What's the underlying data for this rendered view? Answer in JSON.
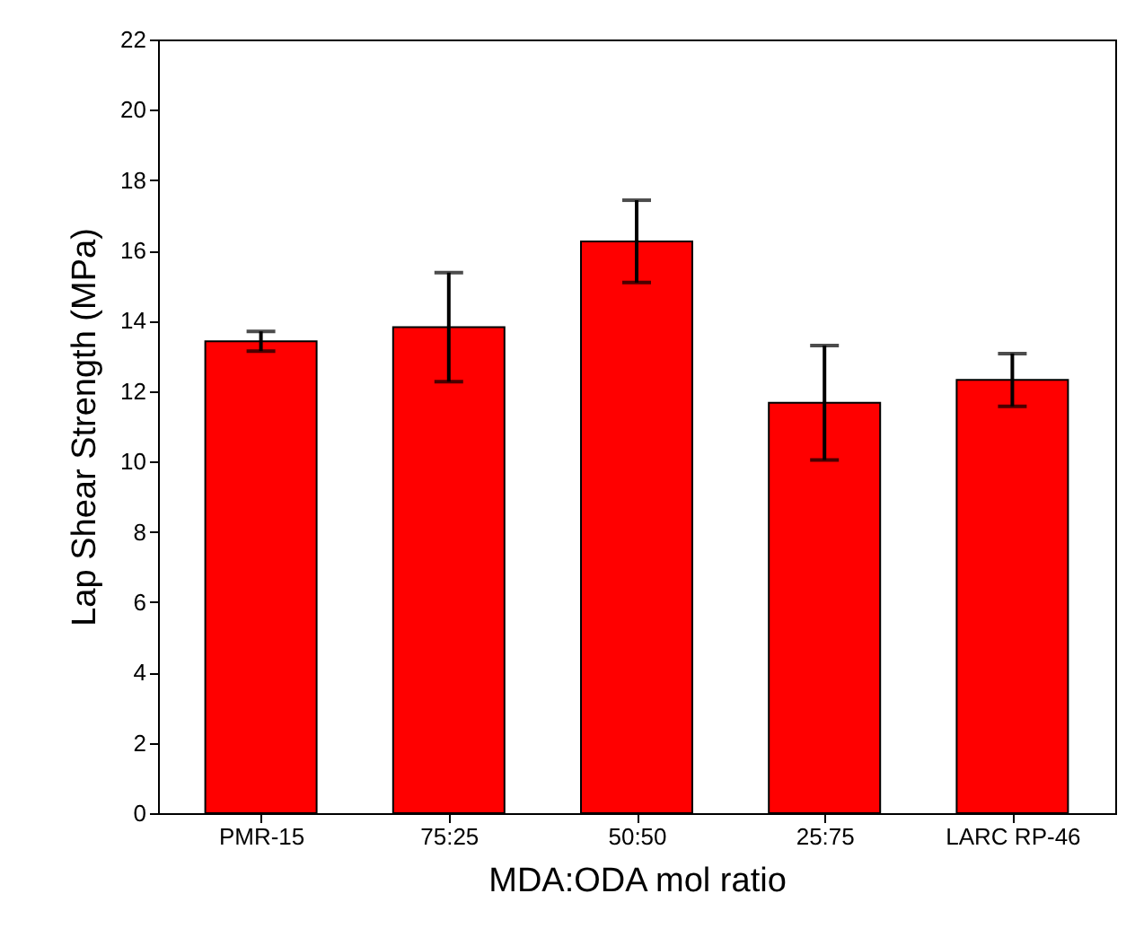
{
  "chart_data": {
    "type": "bar",
    "xlabel": "MDA:ODA mol ratio",
    "ylabel": "Lap Shear Strength (MPa)",
    "categories": [
      "PMR-15",
      "75:25",
      "50:50",
      "25:75",
      "LARC RP-46"
    ],
    "values": [
      13.42,
      13.82,
      16.26,
      11.67,
      12.32
    ],
    "errors": [
      0.28,
      1.55,
      1.17,
      1.63,
      0.75
    ],
    "color": "#ff0000",
    "ylim": [
      0,
      22
    ],
    "yticks": [
      0,
      2,
      4,
      6,
      8,
      10,
      12,
      14,
      16,
      18,
      20,
      22
    ],
    "grid": false
  }
}
